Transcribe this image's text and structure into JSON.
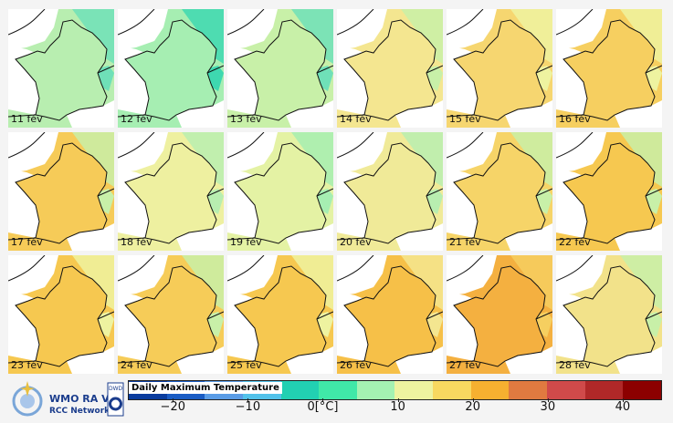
{
  "panels": [
    {
      "label": "11 fév",
      "color": "#b8eeb0",
      "east": "#6fe0b8"
    },
    {
      "label": "12 fév",
      "color": "#a6eeb2",
      "east": "#3ed8b0"
    },
    {
      "label": "13 fév",
      "color": "#c8f0a8",
      "east": "#6fe0b8"
    },
    {
      "label": "14 fév",
      "color": "#f4e690",
      "east": "#c8f0a8"
    },
    {
      "label": "15 fév",
      "color": "#f6d670",
      "east": "#eef3a0"
    },
    {
      "label": "16 fév",
      "color": "#f6cf60",
      "east": "#eef3a0"
    },
    {
      "label": "17 fév",
      "color": "#f6cb58",
      "east": "#c8f0a8"
    },
    {
      "label": "18 fév",
      "color": "#eef0a0",
      "east": "#b8eeb0"
    },
    {
      "label": "19 fév",
      "color": "#e4f2a4",
      "east": "#a6eeb2"
    },
    {
      "label": "20 fév",
      "color": "#f0ea98",
      "east": "#b8eeb0"
    },
    {
      "label": "21 fév",
      "color": "#f6d468",
      "east": "#c8f0a8"
    },
    {
      "label": "22 fév",
      "color": "#f6c850",
      "east": "#c8f0a8"
    },
    {
      "label": "23 fév",
      "color": "#f6c850",
      "east": "#eef3a0"
    },
    {
      "label": "24 fév",
      "color": "#f6cc58",
      "east": "#c8f0a8"
    },
    {
      "label": "25 fév",
      "color": "#f6c850",
      "east": "#eef3a0"
    },
    {
      "label": "26 fév",
      "color": "#f6c048",
      "east": "#f4e690"
    },
    {
      "label": "27 fév",
      "color": "#f4b040",
      "east": "#f6cf60"
    },
    {
      "label": "28 fév",
      "color": "#f2e28a",
      "east": "#c8f0a8"
    }
  ],
  "legend": {
    "title": "Daily Maximum Temperature",
    "unit": "[°C]",
    "logo_text": "WMO RA VI",
    "logo_sub": "RCC Network",
    "dwd": "DWD",
    "ticks": [
      {
        "v": -20,
        "t": "−20"
      },
      {
        "v": -10,
        "t": "−10"
      },
      {
        "v": 0,
        "t": "0[°C]"
      },
      {
        "v": 10,
        "t": "10"
      },
      {
        "v": 20,
        "t": "20"
      },
      {
        "v": 30,
        "t": "30"
      },
      {
        "v": 40,
        "t": "40"
      }
    ],
    "range": [
      -26,
      45
    ],
    "colors": [
      "#0a3c9e",
      "#1a5cc4",
      "#5a9ce6",
      "#52c2ea",
      "#22d0b2",
      "#40e8a8",
      "#a4f2b2",
      "#eef3a0",
      "#f8d860",
      "#f6b030",
      "#e07a40",
      "#d04a4a",
      "#b02828",
      "#8c0000"
    ]
  }
}
